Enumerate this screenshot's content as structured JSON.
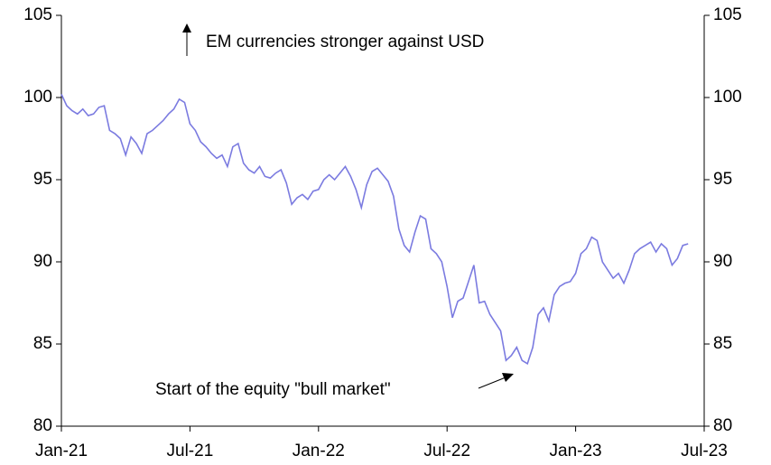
{
  "chart_data": {
    "type": "line",
    "annotations": [
      "EM currencies stronger against USD",
      "Start of the equity \"bull market\""
    ],
    "x": [
      0,
      0.25,
      0.5,
      0.75,
      1,
      1.25,
      1.5,
      1.75,
      2,
      2.25,
      2.5,
      2.75,
      3,
      3.25,
      3.5,
      3.75,
      4,
      4.25,
      4.5,
      4.75,
      5,
      5.25,
      5.5,
      5.75,
      6,
      6.25,
      6.5,
      6.75,
      7,
      7.25,
      7.5,
      7.75,
      8,
      8.25,
      8.5,
      8.75,
      9,
      9.25,
      9.5,
      9.75,
      10,
      10.25,
      10.5,
      10.75,
      11,
      11.25,
      11.5,
      11.75,
      12,
      12.25,
      12.5,
      12.75,
      13,
      13.25,
      13.5,
      13.75,
      14,
      14.25,
      14.5,
      14.75,
      15,
      15.25,
      15.5,
      15.75,
      16,
      16.25,
      16.5,
      16.75,
      17,
      17.25,
      17.5,
      17.75,
      18,
      18.25,
      18.5,
      18.75,
      19,
      19.25,
      19.5,
      19.75,
      20,
      20.25,
      20.5,
      20.75,
      21,
      21.25,
      21.5,
      21.75,
      22,
      22.25,
      22.5,
      22.75,
      23,
      23.25,
      23.5,
      23.75,
      24,
      24.25,
      24.5,
      24.75,
      25,
      25.25,
      25.5,
      25.75,
      26,
      26.25,
      26.5,
      26.75,
      27,
      27.25,
      27.5,
      27.75,
      28,
      28.25,
      28.5,
      28.75,
      29,
      29.25
    ],
    "series": [
      {
        "color": "#7b7be0",
        "values": [
          100.2,
          99.5,
          99.2,
          99.0,
          99.3,
          98.9,
          99.0,
          99.4,
          99.5,
          98.0,
          97.8,
          97.5,
          96.5,
          97.6,
          97.2,
          96.6,
          97.8,
          98.0,
          98.3,
          98.6,
          99.0,
          99.3,
          99.9,
          99.7,
          98.4,
          98.0,
          97.3,
          97.0,
          96.6,
          96.3,
          96.5,
          95.8,
          97.0,
          97.2,
          96.0,
          95.6,
          95.4,
          95.8,
          95.2,
          95.1,
          95.4,
          95.6,
          94.8,
          93.5,
          93.9,
          94.1,
          93.8,
          94.3,
          94.4,
          95.0,
          95.3,
          95.0,
          95.4,
          95.8,
          95.2,
          94.4,
          93.3,
          94.7,
          95.5,
          95.7,
          95.3,
          94.9,
          94.0,
          92.0,
          91.0,
          90.6,
          91.8,
          92.8,
          92.6,
          90.8,
          90.5,
          90.0,
          88.5,
          86.6,
          87.6,
          87.8,
          88.8,
          89.8,
          87.5,
          87.6,
          86.8,
          86.3,
          85.8,
          84.0,
          84.3,
          84.8,
          84.0,
          83.8,
          84.8,
          86.8,
          87.2,
          86.4,
          88.0,
          88.5,
          88.7,
          88.8,
          89.3,
          90.5,
          90.8,
          91.5,
          91.3,
          90.0,
          89.5,
          89.0,
          89.3,
          88.7,
          89.5,
          90.5,
          90.8,
          91.0,
          91.2,
          90.6,
          91.1,
          90.8,
          89.8,
          90.2,
          91.0,
          91.1
        ]
      }
    ],
    "xlim": [
      0,
      30
    ],
    "xticks": [
      {
        "value": 0,
        "label": "Jan-21"
      },
      {
        "value": 6,
        "label": "Jul-21"
      },
      {
        "value": 12,
        "label": "Jan-22"
      },
      {
        "value": 18,
        "label": "Jul-22"
      },
      {
        "value": 24,
        "label": "Jan-23"
      },
      {
        "value": 30,
        "label": "Jul-23"
      }
    ],
    "ylim": [
      80,
      105
    ],
    "yticks": [
      80,
      85,
      90,
      95,
      100,
      105
    ],
    "y2lim": [
      80,
      105
    ],
    "y2ticks": [
      80,
      85,
      90,
      95,
      100,
      105
    ]
  }
}
